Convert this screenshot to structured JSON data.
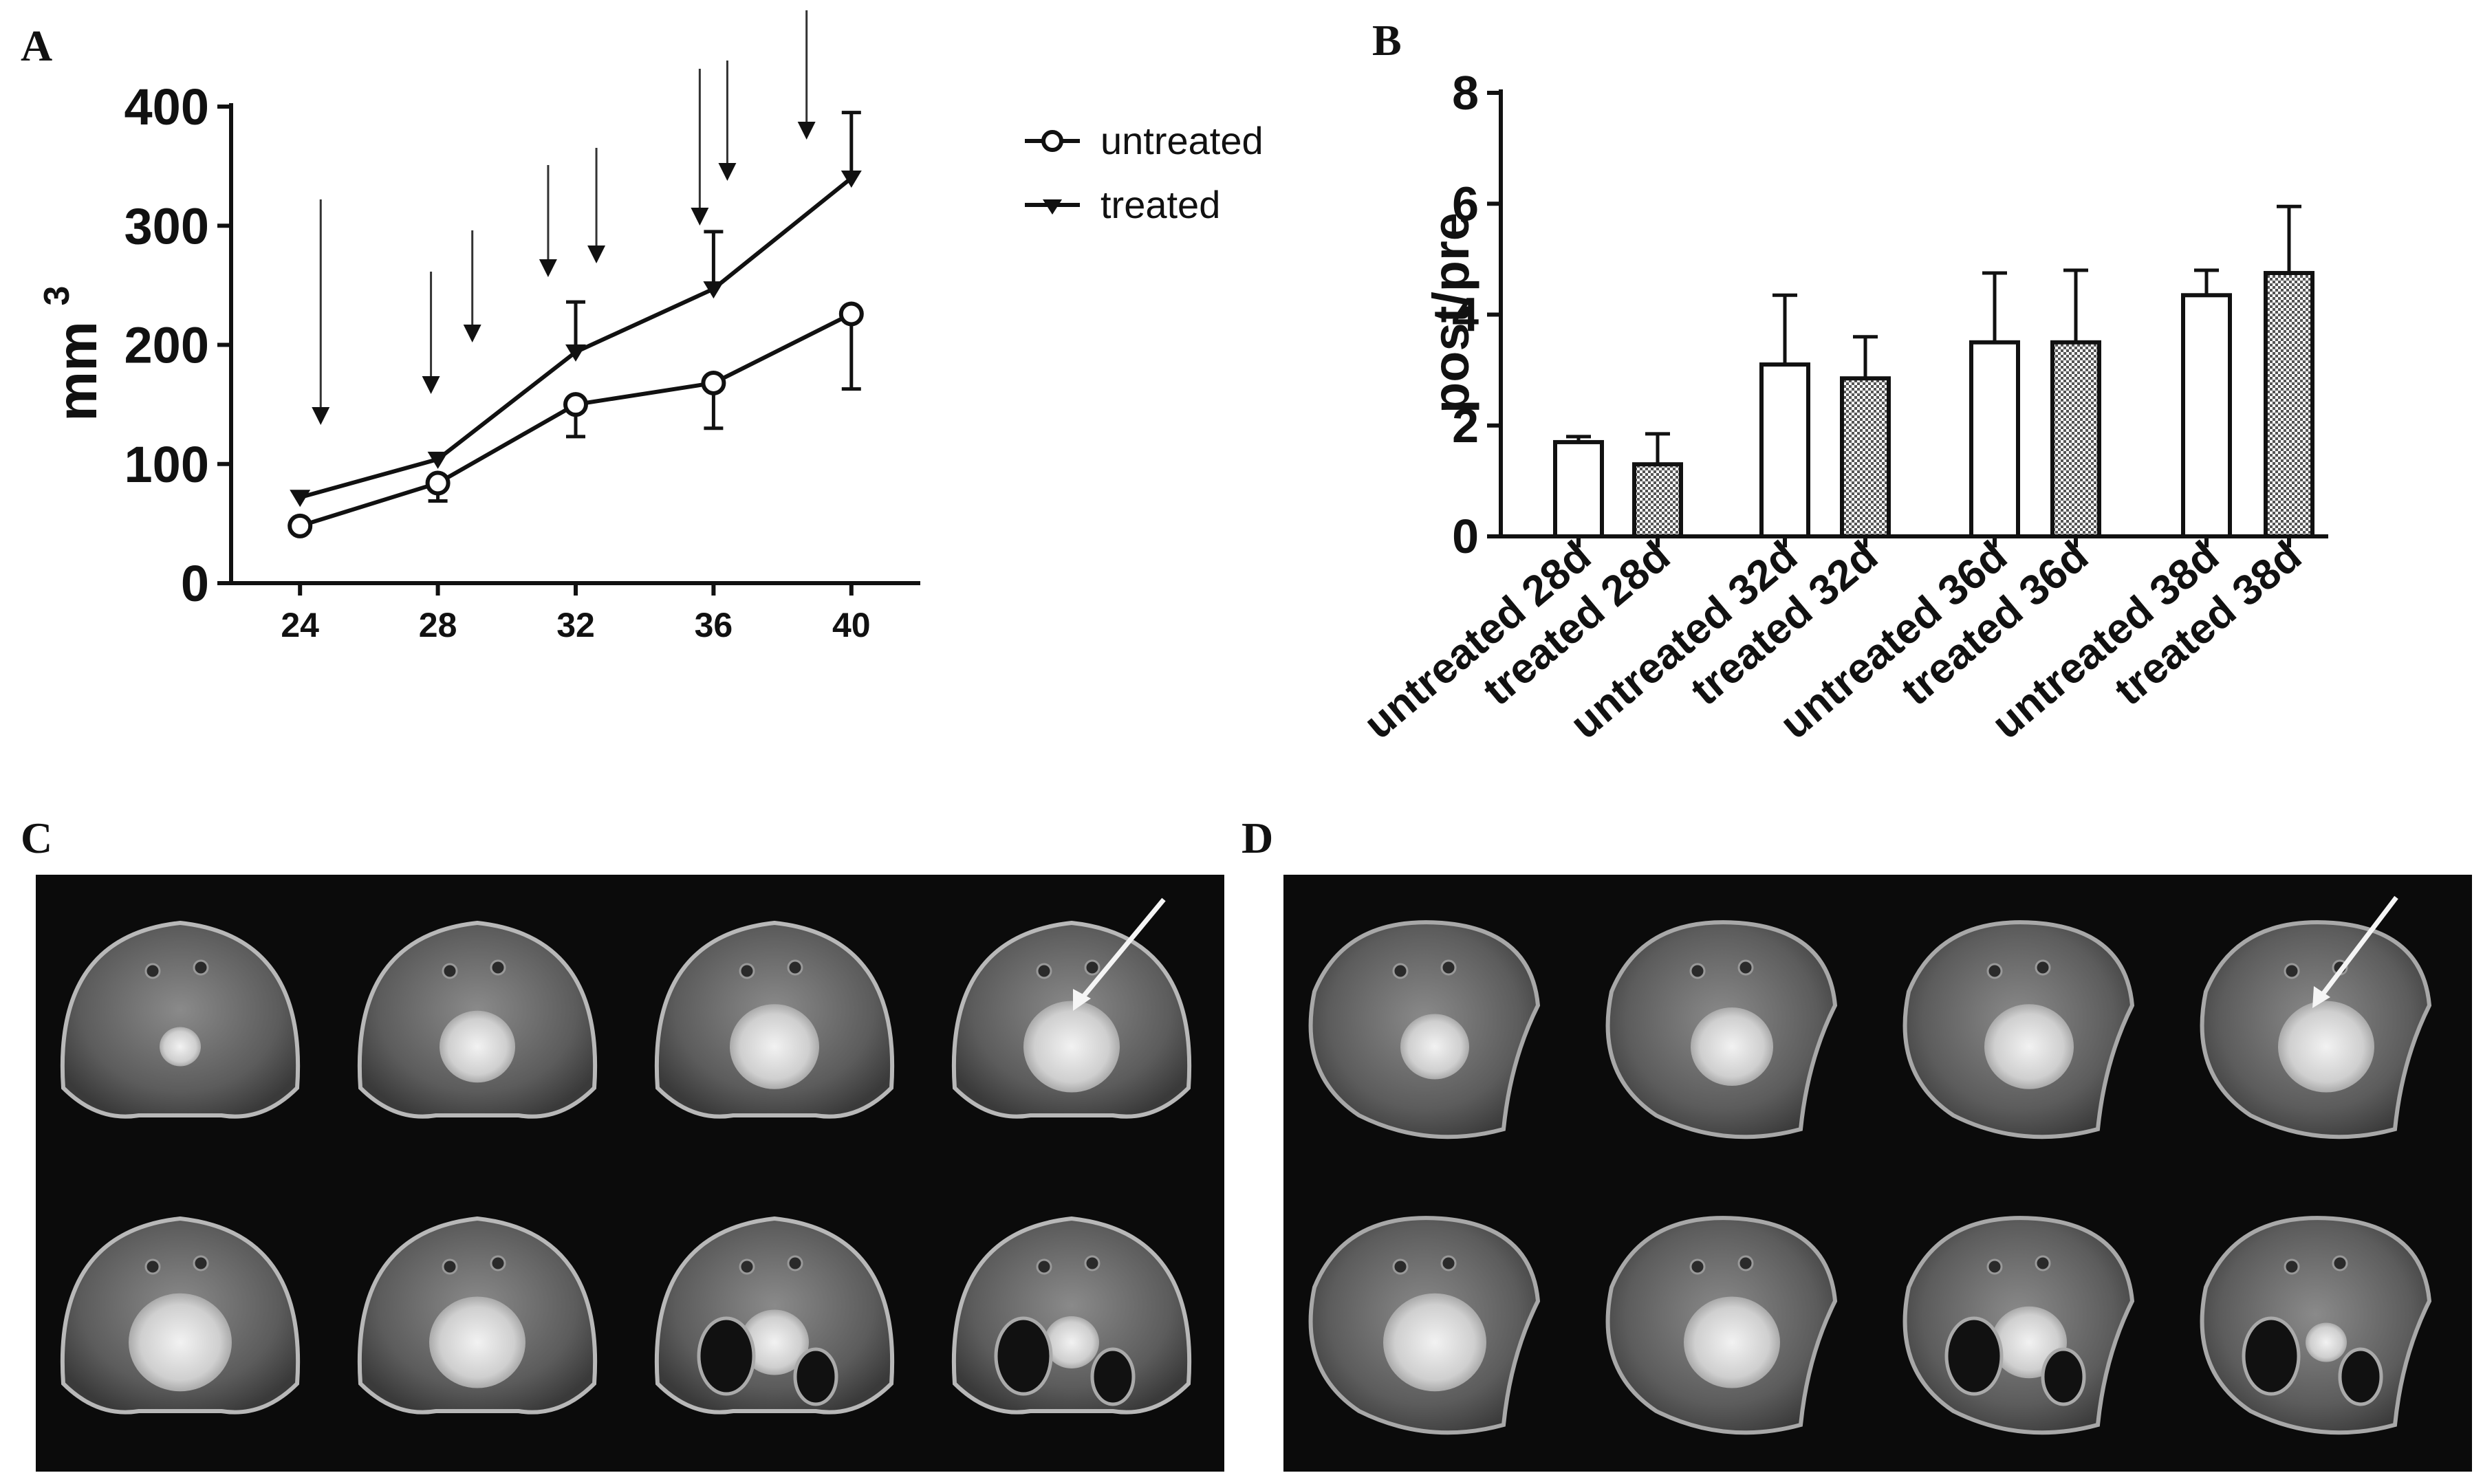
{
  "panels": {
    "A": "A",
    "B": "B",
    "C": "C",
    "D": "D"
  },
  "chart_data": [
    {
      "type": "line",
      "panel": "A",
      "ylabel": "mm",
      "ylabel_superscript": "3",
      "x": [
        24,
        28,
        32,
        36,
        40
      ],
      "xticks": [
        "24",
        "28",
        "32",
        "36",
        "40"
      ],
      "ylim": [
        0,
        400
      ],
      "yticks": [
        "0",
        "100",
        "200",
        "300",
        "400"
      ],
      "series": [
        {
          "name": "untreated",
          "marker": "circle",
          "values": [
            48,
            84,
            150,
            168,
            226
          ],
          "err": [
            0,
            15,
            27,
            38,
            63
          ]
        },
        {
          "name": "treated",
          "marker": "triangle-down",
          "values": [
            72,
            104,
            194,
            247,
            340
          ],
          "err": [
            0,
            0,
            42,
            48,
            55
          ]
        }
      ],
      "legend": "top-right",
      "annotations": "arrows indicating treatment time points",
      "arrow_x": [
        24.6,
        27.8,
        29.0,
        31.2,
        32.6,
        35.6,
        36.4,
        38.7
      ]
    },
    {
      "type": "bar",
      "panel": "B",
      "ylabel": "post/pre",
      "ylim": [
        0,
        8
      ],
      "yticks": [
        "0",
        "2",
        "4",
        "6",
        "8"
      ],
      "categories": [
        "untreated 28d",
        "treated 28d",
        "untreated 32d",
        "treated 32d",
        "untreated 36d",
        "treated 36d",
        "untreated 38d",
        "treated 38d"
      ],
      "values": [
        1.7,
        1.3,
        3.1,
        2.85,
        3.5,
        3.5,
        4.35,
        4.75
      ],
      "err": [
        0.1,
        0.55,
        1.25,
        0.75,
        1.25,
        1.3,
        0.45,
        1.2
      ],
      "fill": [
        "open",
        "hatched",
        "open",
        "hatched",
        "open",
        "hatched",
        "open",
        "hatched"
      ]
    }
  ],
  "legend": {
    "untreated": "untreated",
    "treated": "treated"
  },
  "mri": {
    "C": "MRI slices untreated",
    "D": "MRI slices treated"
  }
}
